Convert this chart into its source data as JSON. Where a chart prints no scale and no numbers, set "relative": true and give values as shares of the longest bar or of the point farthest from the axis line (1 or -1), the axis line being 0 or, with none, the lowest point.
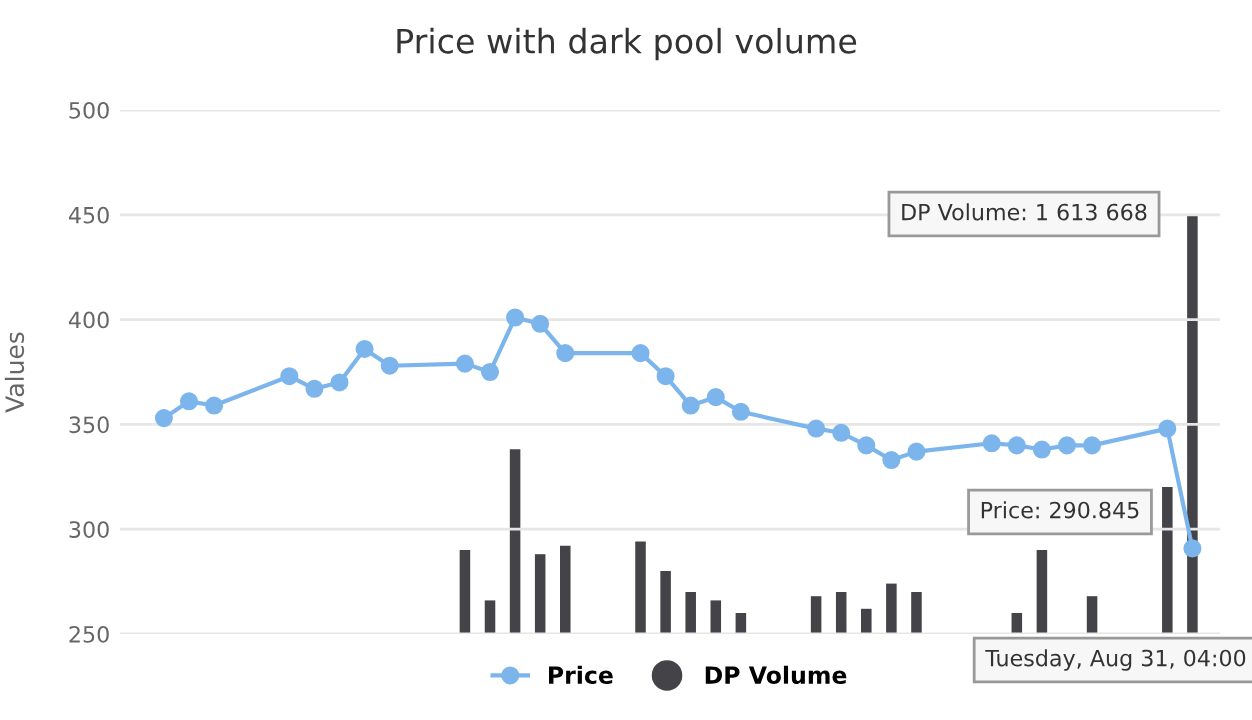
{
  "chart_data": [
    {
      "type": "line",
      "title": "Price with dark pool volume",
      "ylabel": "Values",
      "categories": [
        null,
        null,
        null,
        null,
        null,
        null,
        null,
        null,
        null,
        null,
        null,
        null,
        null,
        null,
        null,
        null,
        null,
        null,
        null,
        null,
        null,
        null,
        null,
        null,
        null,
        null,
        null,
        null,
        null,
        null,
        null,
        null,
        null,
        null,
        null,
        null,
        null,
        null,
        null,
        null,
        null,
        null
      ],
      "series": [
        {
          "name": "Price",
          "color": "#7cb5ec",
          "values": [
            353,
            361,
            359,
            null,
            null,
            373,
            367,
            370,
            386,
            378,
            null,
            null,
            379,
            375,
            401,
            398,
            384,
            null,
            null,
            384,
            373,
            359,
            363,
            356,
            null,
            null,
            348,
            346,
            340,
            333,
            337,
            null,
            null,
            341,
            340,
            338,
            340,
            340,
            null,
            null,
            348,
            290.845
          ]
        }
      ],
      "marker": "circle",
      "ylim": [
        250,
        500
      ],
      "yticks": [
        250,
        300,
        350,
        400,
        450,
        500
      ],
      "grid": "y",
      "legend": "bottom",
      "tick_labels": "y",
      "annotations": [
        "Price: 290.845",
        "Tuesday, Aug 31, 04:00"
      ]
    },
    {
      "type": "bar",
      "relative": true,
      "categories": [
        null,
        null,
        null,
        null,
        null,
        null,
        null,
        null,
        null,
        null,
        null,
        null,
        null,
        null,
        null,
        null,
        null,
        null,
        null,
        null,
        null,
        null,
        null,
        null,
        null,
        null,
        null,
        null,
        null,
        null,
        null,
        null,
        null,
        null,
        null,
        null,
        null,
        null,
        null,
        null,
        null,
        null
      ],
      "series": [
        {
          "name": "DP Volume",
          "color": "#434348",
          "values": [
            null,
            null,
            null,
            null,
            null,
            null,
            null,
            null,
            null,
            null,
            null,
            null,
            0.2,
            0.08,
            0.44,
            0.19,
            0.21,
            null,
            null,
            0.22,
            0.15,
            0.1,
            0.08,
            0.05,
            null,
            null,
            0.09,
            0.1,
            0.06,
            0.12,
            0.1,
            null,
            null,
            null,
            0.05,
            0.2,
            null,
            0.09,
            null,
            null,
            0.35,
            1
          ]
        }
      ],
      "legend": "bottom",
      "tick_labels": false,
      "annotations": [
        "DP Volume: 1 613 668"
      ]
    }
  ]
}
